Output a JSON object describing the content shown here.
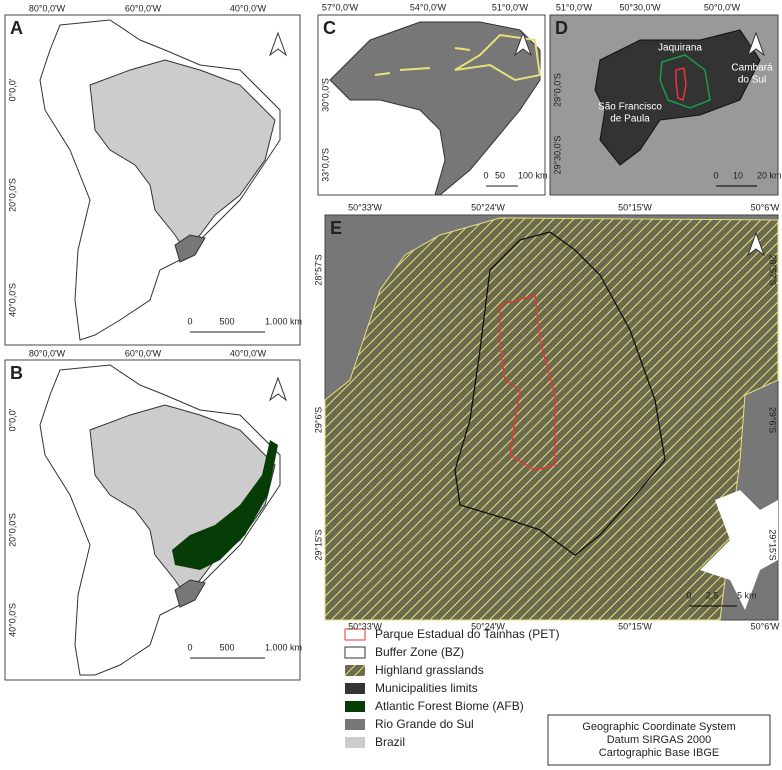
{
  "panels": [
    {
      "label": "A",
      "top_labels": [
        "80°0,0'W",
        "60°0,0'W",
        "40°0,0'W"
      ],
      "left_labels": [
        "0°0,0'",
        "20°0,0'S",
        "40°0,0'S"
      ],
      "scale_labels": [
        "0",
        "500",
        "1.000 km"
      ]
    },
    {
      "label": "B",
      "top_labels": [
        "80°0,0'W",
        "60°0,0'W",
        "40°0,0'W"
      ],
      "left_labels": [
        "0°0,0'",
        "20°0,0'S",
        "40°0,0'S"
      ],
      "scale_labels": [
        "0",
        "500",
        "1.000 km"
      ]
    },
    {
      "label": "C",
      "top_labels": [
        "57°0,0'W",
        "54°0,0'W",
        "51°0,0'W"
      ],
      "left_labels": [
        "30°0,0'S",
        "33°0,0'S"
      ],
      "scale_labels": [
        "0",
        "50",
        "100 km"
      ]
    },
    {
      "label": "D",
      "top_labels": [
        "51°0,0'W",
        "50°30,0'W",
        "50°0,0'W"
      ],
      "left_labels": [
        "29°0,0'S",
        "29°30,0'S"
      ],
      "scale_labels": [
        "0",
        "10",
        "20 km"
      ],
      "place_names": [
        [
          "Jaquirana"
        ],
        [
          "Cambará",
          "do Sul"
        ],
        [
          "São Francisco",
          "de Paula"
        ]
      ]
    },
    {
      "label": "E",
      "top_labels": [
        "50°33'W",
        "50°24'W",
        "50°15'W",
        "50°6'W"
      ],
      "bottom_labels": [
        "50°33'W",
        "50°24'W",
        "50°15'W",
        "50°6'W"
      ],
      "left_labels": [
        "28°57'S",
        "29°6'S",
        "29°15'S"
      ],
      "right_labels": [
        "28°57'S",
        "29°6'S",
        "29°15'S"
      ],
      "scale_labels": [
        "0",
        "2,5",
        "5 km"
      ]
    }
  ],
  "legend": [
    "Parque Estadual do Tainhas (PET)",
    "Buffer Zone (BZ)",
    "Highland grasslands",
    "Municipalities limits",
    "Atlantic Forest Biome (AFB)",
    "Rio Grande do Sul",
    "Brazil"
  ],
  "info_box": [
    "Geographic Coordinate System",
    "Datum SIRGAS 2000",
    "Cartographic Base IBGE"
  ]
}
